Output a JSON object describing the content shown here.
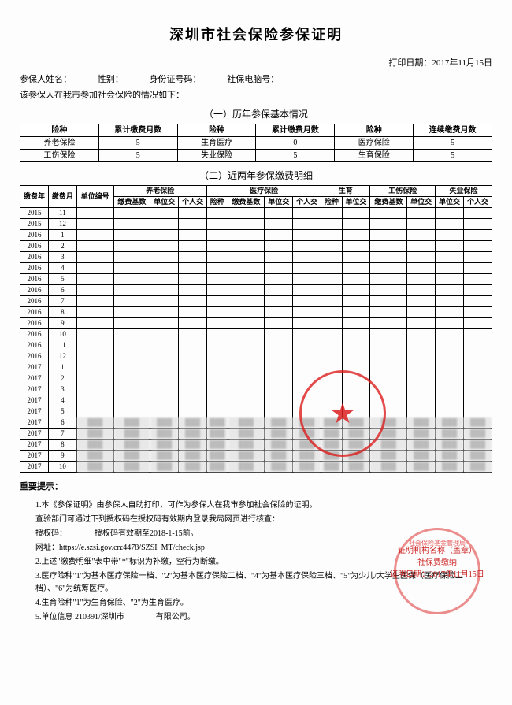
{
  "title": "深圳市社会保险参保证明",
  "print_date_label": "打印日期：",
  "print_date": "2017年11月15日",
  "info": {
    "name_label": "参保人姓名：",
    "gender_label": "性别：",
    "id_label": "身份证号码：",
    "computer_label": "社保电脑号：",
    "intro": "该参保人在我市参加社会保险的情况如下："
  },
  "section1_title": "（一）历年参保基本情况",
  "summary": {
    "headers": [
      "险种",
      "累计缴费月数",
      "险种",
      "累计缴费月数",
      "险种",
      "连续缴费月数"
    ],
    "rows": [
      [
        "养老保险",
        "5",
        "生育医疗",
        "0",
        "医疗保险",
        "5"
      ],
      [
        "工伤保险",
        "5",
        "失业保险",
        "5",
        "生育保险",
        "5"
      ]
    ]
  },
  "section2_title": "（二）近两年参保缴费明细",
  "detail": {
    "group_headers": [
      "",
      "",
      "",
      "养老保险",
      "",
      "医疗保险",
      "",
      "",
      "生育",
      "工伤保险",
      "失业保险"
    ],
    "headers": [
      "缴费年",
      "缴费月",
      "单位编号",
      "缴费基数",
      "单位交",
      "个人交",
      "险种",
      "缴费基数",
      "单位交",
      "个人交",
      "险种",
      "单位交",
      "缴费基数",
      "单位交",
      "单位交",
      "个人交"
    ],
    "rows": [
      [
        "2015",
        "11",
        "",
        "",
        "",
        "",
        "",
        "",
        "",
        "",
        "",
        "",
        "",
        "",
        "",
        ""
      ],
      [
        "2015",
        "12",
        "",
        "",
        "",
        "",
        "",
        "",
        "",
        "",
        "",
        "",
        "",
        "",
        "",
        ""
      ],
      [
        "2016",
        "1",
        "",
        "",
        "",
        "",
        "",
        "",
        "",
        "",
        "",
        "",
        "",
        "",
        "",
        ""
      ],
      [
        "2016",
        "2",
        "",
        "",
        "",
        "",
        "",
        "",
        "",
        "",
        "",
        "",
        "",
        "",
        "",
        ""
      ],
      [
        "2016",
        "3",
        "",
        "",
        "",
        "",
        "",
        "",
        "",
        "",
        "",
        "",
        "",
        "",
        "",
        ""
      ],
      [
        "2016",
        "4",
        "",
        "",
        "",
        "",
        "",
        "",
        "",
        "",
        "",
        "",
        "",
        "",
        "",
        ""
      ],
      [
        "2016",
        "5",
        "",
        "",
        "",
        "",
        "",
        "",
        "",
        "",
        "",
        "",
        "",
        "",
        "",
        ""
      ],
      [
        "2016",
        "6",
        "",
        "",
        "",
        "",
        "",
        "",
        "",
        "",
        "",
        "",
        "",
        "",
        "",
        ""
      ],
      [
        "2016",
        "7",
        "",
        "",
        "",
        "",
        "",
        "",
        "",
        "",
        "",
        "",
        "",
        "",
        "",
        ""
      ],
      [
        "2016",
        "8",
        "",
        "",
        "",
        "",
        "",
        "",
        "",
        "",
        "",
        "",
        "",
        "",
        "",
        ""
      ],
      [
        "2016",
        "9",
        "",
        "",
        "",
        "",
        "",
        "",
        "",
        "",
        "",
        "",
        "",
        "",
        "",
        ""
      ],
      [
        "2016",
        "10",
        "",
        "",
        "",
        "",
        "",
        "",
        "",
        "",
        "",
        "",
        "",
        "",
        "",
        ""
      ],
      [
        "2016",
        "11",
        "",
        "",
        "",
        "",
        "",
        "",
        "",
        "",
        "",
        "",
        "",
        "",
        "",
        ""
      ],
      [
        "2016",
        "12",
        "",
        "",
        "",
        "",
        "",
        "",
        "",
        "",
        "",
        "",
        "",
        "",
        "",
        ""
      ],
      [
        "2017",
        "1",
        "",
        "",
        "",
        "",
        "",
        "",
        "",
        "",
        "",
        "",
        "",
        "",
        "",
        ""
      ],
      [
        "2017",
        "2",
        "",
        "",
        "",
        "",
        "",
        "",
        "",
        "",
        "",
        "",
        "",
        "",
        "",
        ""
      ],
      [
        "2017",
        "3",
        "",
        "",
        "",
        "",
        "",
        "",
        "",
        "",
        "",
        "",
        "",
        "",
        "",
        ""
      ],
      [
        "2017",
        "4",
        "",
        "",
        "",
        "",
        "",
        "",
        "",
        "",
        "",
        "",
        "",
        "",
        "",
        ""
      ],
      [
        "2017",
        "5",
        "",
        "",
        "",
        "",
        "",
        "",
        "",
        "",
        "",
        "",
        "",
        "",
        "",
        ""
      ],
      [
        "2017",
        "6",
        "R",
        "R",
        "R",
        "R",
        "R",
        "R",
        "R",
        "R",
        "R",
        "R",
        "R",
        "R",
        "R",
        "R"
      ],
      [
        "2017",
        "7",
        "R",
        "R",
        "R",
        "R",
        "R",
        "R",
        "R",
        "R",
        "R",
        "R",
        "R",
        "R",
        "R",
        "R"
      ],
      [
        "2017",
        "8",
        "R",
        "R",
        "R",
        "R",
        "R",
        "R",
        "R",
        "R",
        "R",
        "R",
        "R",
        "R",
        "R",
        "R"
      ],
      [
        "2017",
        "9",
        "R",
        "R",
        "R",
        "R",
        "R",
        "R",
        "R",
        "R",
        "R",
        "R",
        "R",
        "R",
        "R",
        "R"
      ],
      [
        "2017",
        "10",
        "R",
        "R",
        "R",
        "R",
        "R",
        "R",
        "R",
        "R",
        "R",
        "R",
        "R",
        "R",
        "R",
        "R"
      ]
    ]
  },
  "notes_title": "重要提示：",
  "notes": [
    "1.本《参保证明》由参保人自助打印，可作为参保人在我市参加社会保险的证明。",
    "查验部门可通过下列授权码在授权码有效期内登录我局网页进行核查：",
    "授权码：　　　　授权码有效期至2018-1-15前。",
    "网址：https://e.szsi.gov.cn:4478/SZSI_MT/check.jsp",
    "2.上述\"缴费明细\"表中带\"*\"标识为补缴，空行为断缴。",
    "3.医疗险种\"1\"为基本医疗保险一档、\"2\"为基本医疗保险二档、\"4\"为基本医疗保险三档、\"5\"为少儿/大学生医保（医疗保险二档）、\"6\"为统筹医疗。",
    "4.生育险种\"1\"为生育保险、\"2\"为生育医疗。",
    "5.单位信息 210391/深圳市　　　　有限公司。"
  ],
  "seal_side": {
    "org_label": "证明机构名称（盖章）",
    "fee_label": "社保费缴纳",
    "date_label": "证明日期：2017年11月15日"
  },
  "seal_colors": {
    "red": "#dc1e1e"
  }
}
